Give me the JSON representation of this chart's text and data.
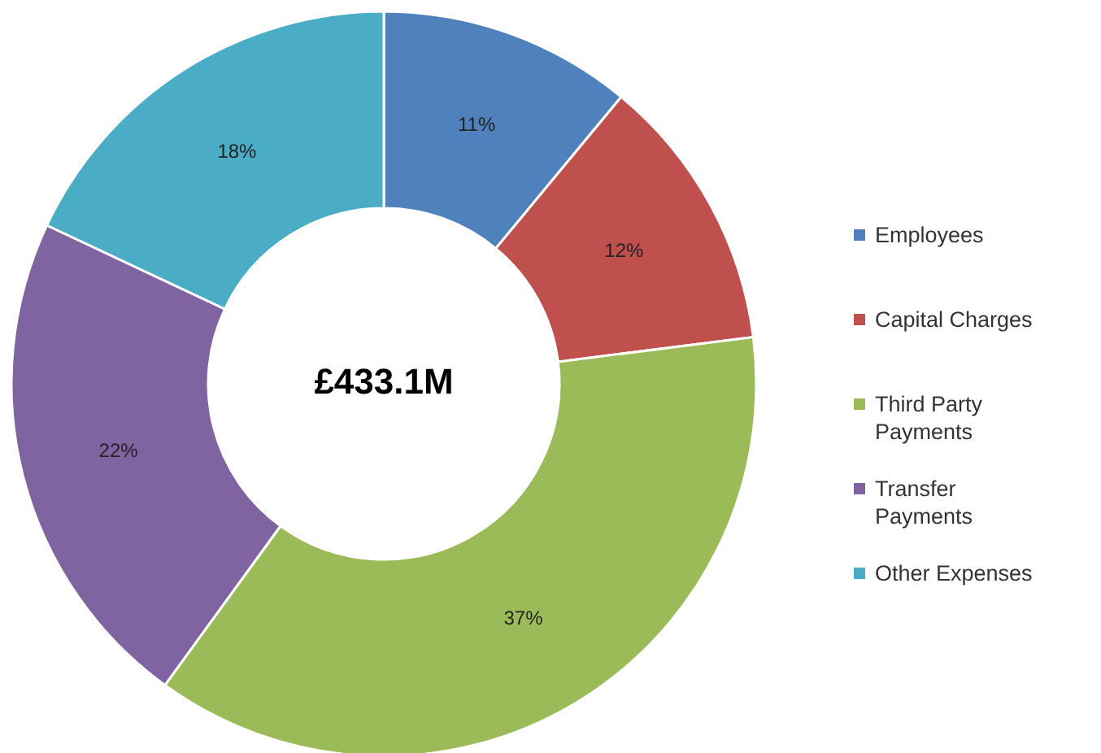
{
  "chart_data": {
    "type": "donut",
    "categories": [
      "Employees",
      "Capital Charges",
      "Third Party Payments",
      "Transfer Payments",
      "Other Expenses"
    ],
    "values": [
      11,
      12,
      37,
      22,
      18
    ],
    "colors": [
      "#4f81bd",
      "#c0504d",
      "#9bbb59",
      "#8064a2",
      "#4bacc6"
    ],
    "value_labels": [
      "11%",
      "12%",
      "37%",
      "22%",
      "18%"
    ],
    "annotations": [
      "£433.1M"
    ],
    "legend": "right"
  }
}
